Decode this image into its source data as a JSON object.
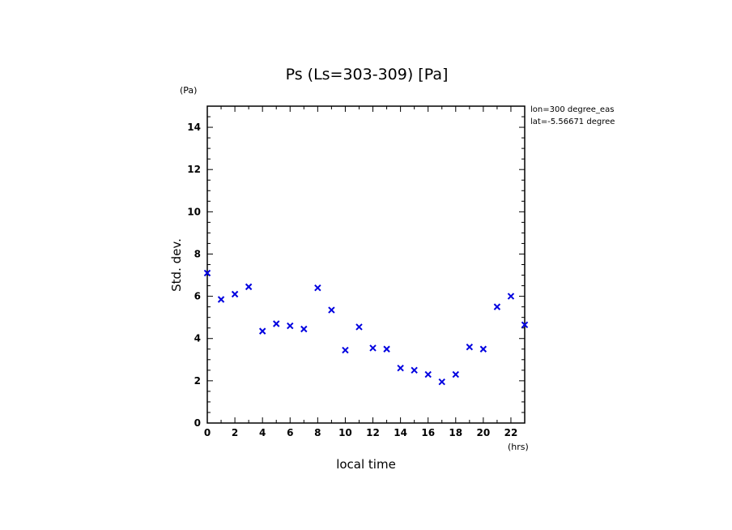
{
  "chart_data": {
    "type": "scatter",
    "title": "Ps (Ls=303-309) [Pa]",
    "xlabel": "local time",
    "ylabel": "Std. dev.",
    "x_unit": "(hrs)",
    "y_unit": "(Pa)",
    "xlim": [
      0,
      23
    ],
    "ylim": [
      0,
      15
    ],
    "x_ticks": [
      0,
      2,
      4,
      6,
      8,
      10,
      12,
      14,
      16,
      18,
      20,
      22
    ],
    "y_ticks": [
      0,
      2,
      4,
      6,
      8,
      10,
      12,
      14
    ],
    "annotations": [
      "lon=300 degree_eas",
      "lat=-5.56671 degree"
    ],
    "marker": "x",
    "marker_color": "#0000e0",
    "grid": false,
    "series": [
      {
        "x": [
          0,
          1,
          2,
          3,
          4,
          5,
          6,
          7,
          8,
          9,
          10,
          11,
          12,
          13,
          14,
          15,
          16,
          17,
          18,
          19,
          20,
          21,
          22,
          23
        ],
        "y": [
          7.1,
          5.85,
          6.1,
          6.45,
          4.35,
          4.7,
          4.6,
          4.45,
          6.4,
          5.35,
          3.45,
          4.55,
          3.55,
          3.5,
          2.6,
          2.5,
          2.3,
          1.95,
          2.3,
          3.6,
          3.5,
          5.5,
          6.0,
          4.65
        ]
      }
    ]
  }
}
